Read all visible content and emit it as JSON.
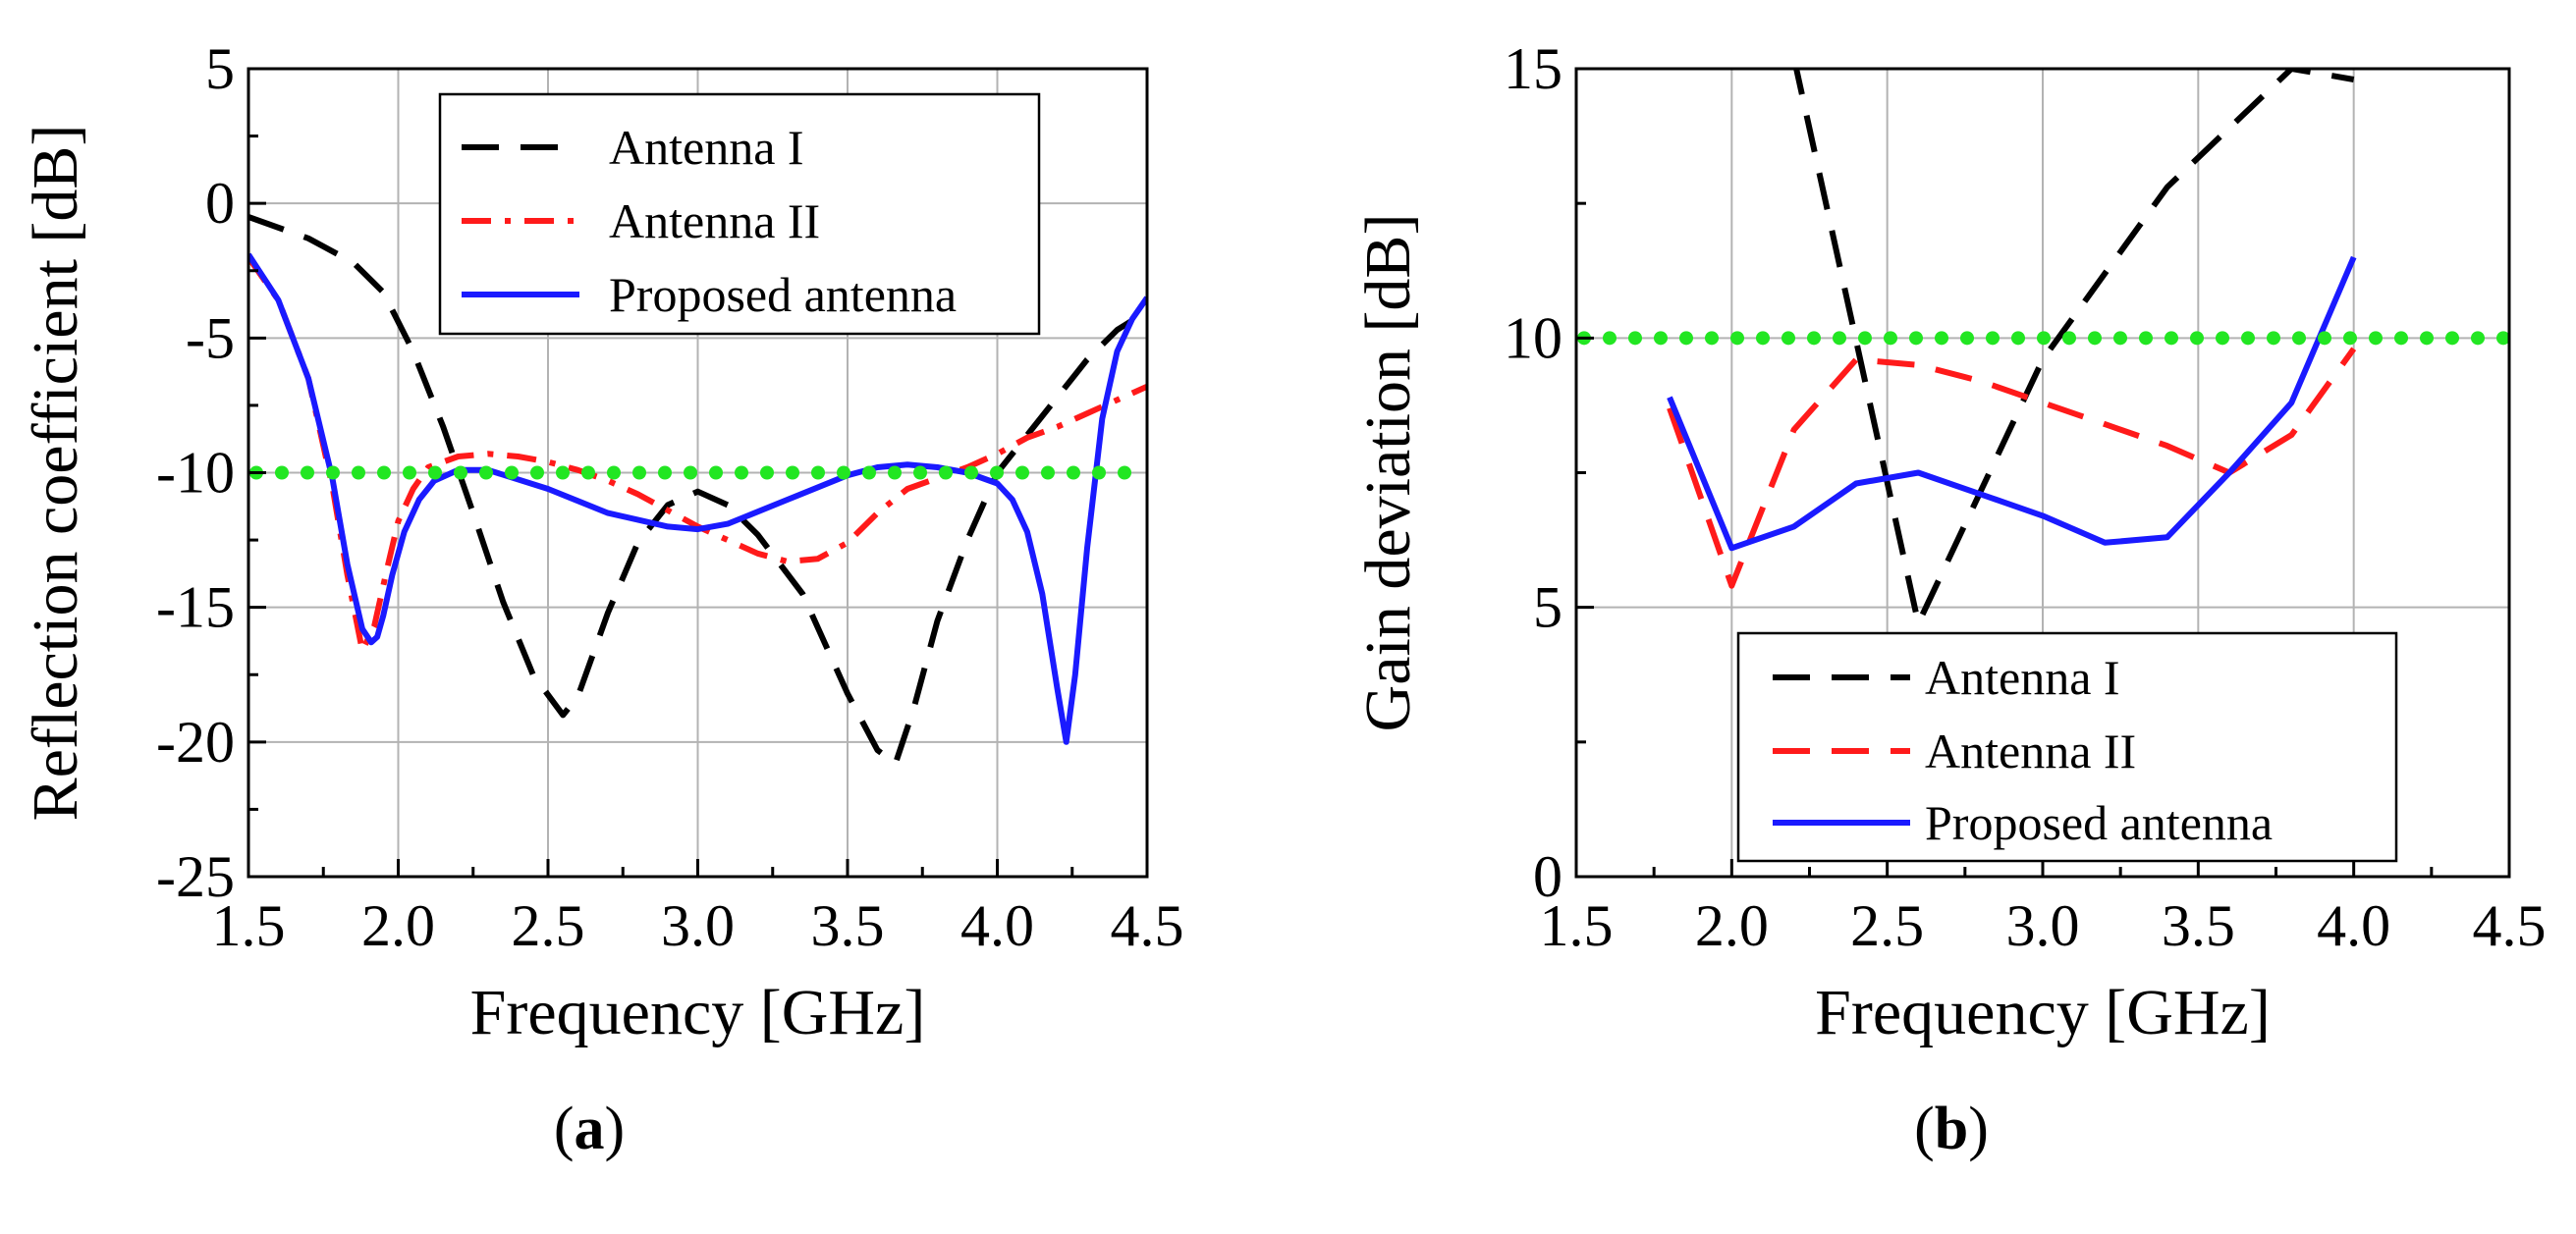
{
  "colors": {
    "antenna_i": "#000000",
    "antenna_ii": "#ff1a1a",
    "proposed": "#1a1aff",
    "threshold": "#22e622",
    "grid": "#b3b3b3"
  },
  "panel_labels": [
    {
      "open": "(",
      "letter": "a",
      "close": ")"
    },
    {
      "open": "(",
      "letter": "b",
      "close": ")"
    }
  ],
  "chart_data": [
    {
      "type": "line",
      "title": "",
      "xlabel": "Frequency [GHz]",
      "ylabel": "Reflection coefficient [dB]",
      "xlim": [
        1.5,
        4.5
      ],
      "ylim": [
        -25,
        5
      ],
      "xticks": [
        1.5,
        2.0,
        2.5,
        3.0,
        3.5,
        4.0,
        4.5
      ],
      "xtick_labels": [
        "1.5",
        "2.0",
        "2.5",
        "3.0",
        "3.5",
        "4.0",
        "4.5"
      ],
      "yticks": [
        -25,
        -20,
        -15,
        -10,
        -5,
        0,
        5
      ],
      "ytick_labels": [
        "-25",
        "-20",
        "-15",
        "-10",
        "-5",
        "0",
        "5"
      ],
      "grid": true,
      "legend_position": "top-right",
      "series": [
        {
          "name": "Antenna I",
          "style": "dash",
          "color": "#000000",
          "x": [
            1.5,
            1.7,
            1.85,
            1.95,
            2.05,
            2.15,
            2.25,
            2.35,
            2.45,
            2.55,
            2.6,
            2.7,
            2.8,
            2.9,
            3.0,
            3.1,
            3.2,
            3.35,
            3.5,
            3.6,
            3.66,
            3.72,
            3.8,
            3.9,
            4.0,
            4.1,
            4.2,
            4.3,
            4.4,
            4.5
          ],
          "y": [
            -0.5,
            -1.3,
            -2.2,
            -3.3,
            -5.5,
            -8.3,
            -11.5,
            -14.8,
            -17.5,
            -19.0,
            -18.3,
            -15.2,
            -12.6,
            -11.2,
            -10.7,
            -11.2,
            -12.3,
            -14.5,
            -18.2,
            -20.3,
            -20.8,
            -18.8,
            -15.5,
            -12.5,
            -10.0,
            -8.6,
            -7.2,
            -5.8,
            -4.7,
            -4.0
          ]
        },
        {
          "name": "Antenna II",
          "style": "dash-dot",
          "color": "#ff1a1a",
          "x": [
            1.5,
            1.6,
            1.7,
            1.78,
            1.83,
            1.88,
            1.92,
            1.96,
            2.0,
            2.05,
            2.1,
            2.2,
            2.3,
            2.4,
            2.5,
            2.6,
            2.7,
            2.8,
            2.9,
            3.0,
            3.1,
            3.2,
            3.3,
            3.4,
            3.5,
            3.6,
            3.7,
            3.8,
            3.9,
            4.0,
            4.1,
            4.2,
            4.3,
            4.4,
            4.5
          ],
          "y": [
            -2.0,
            -3.6,
            -6.5,
            -10.5,
            -13.8,
            -16.6,
            -15.7,
            -13.7,
            -11.8,
            -10.6,
            -9.8,
            -9.4,
            -9.3,
            -9.4,
            -9.6,
            -9.9,
            -10.3,
            -10.8,
            -11.4,
            -12.0,
            -12.5,
            -13.0,
            -13.3,
            -13.2,
            -12.6,
            -11.5,
            -10.6,
            -10.2,
            -9.8,
            -9.3,
            -8.7,
            -8.3,
            -7.8,
            -7.3,
            -6.8
          ]
        },
        {
          "name": "Proposed antenna",
          "style": "solid",
          "color": "#1a1aff",
          "x": [
            1.5,
            1.6,
            1.7,
            1.78,
            1.83,
            1.88,
            1.91,
            1.93,
            1.95,
            1.98,
            2.02,
            2.07,
            2.12,
            2.2,
            2.3,
            2.5,
            2.7,
            2.9,
            3.0,
            3.1,
            3.3,
            3.5,
            3.6,
            3.7,
            3.8,
            3.9,
            4.0,
            4.05,
            4.1,
            4.15,
            4.2,
            4.23,
            4.26,
            4.3,
            4.35,
            4.4,
            4.45,
            4.5
          ],
          "y": [
            -1.9,
            -3.6,
            -6.5,
            -10.2,
            -13.4,
            -15.8,
            -16.3,
            -16.1,
            -15.3,
            -13.8,
            -12.2,
            -11.0,
            -10.3,
            -9.9,
            -9.9,
            -10.6,
            -11.5,
            -12.0,
            -12.1,
            -11.9,
            -11.0,
            -10.1,
            -9.8,
            -9.7,
            -9.8,
            -10.0,
            -10.4,
            -11.0,
            -12.2,
            -14.5,
            -18.0,
            -20.0,
            -17.5,
            -12.8,
            -8.0,
            -5.5,
            -4.3,
            -3.5
          ]
        },
        {
          "name": "threshold",
          "style": "dotted",
          "color": "#22e622",
          "x": [
            1.5,
            4.5
          ],
          "y": [
            -10,
            -10
          ]
        }
      ],
      "legend": [
        "Antenna I",
        "Antenna II",
        "Proposed antenna"
      ]
    },
    {
      "type": "line",
      "title": "",
      "xlabel": "Frequency [GHz]",
      "ylabel": "Gain deviation [dB]",
      "xlim": [
        1.5,
        4.5
      ],
      "ylim": [
        0,
        15
      ],
      "xticks": [
        1.5,
        2.0,
        2.5,
        3.0,
        3.5,
        4.0,
        4.5
      ],
      "xtick_labels": [
        "1.5",
        "2.0",
        "2.5",
        "3.0",
        "3.5",
        "4.0",
        "4.5"
      ],
      "yticks": [
        0,
        5,
        10,
        15
      ],
      "ytick_labels": [
        "0",
        "5",
        "10",
        "15"
      ],
      "grid": true,
      "legend_position": "bottom-center",
      "series": [
        {
          "name": "Antenna I",
          "style": "dash",
          "color": "#000000",
          "x": [
            2.2,
            2.6,
            3.0,
            3.4,
            3.8,
            4.0
          ],
          "y": [
            15.2,
            4.7,
            9.6,
            12.8,
            15.0,
            14.8
          ]
        },
        {
          "name": "Antenna II",
          "style": "dash",
          "color": "#ff1a1a",
          "x": [
            1.8,
            2.0,
            2.2,
            2.4,
            2.6,
            2.8,
            3.0,
            3.2,
            3.4,
            3.6,
            3.8,
            4.0
          ],
          "y": [
            8.7,
            5.4,
            8.3,
            9.6,
            9.5,
            9.2,
            8.8,
            8.4,
            8.0,
            7.5,
            8.2,
            9.8
          ]
        },
        {
          "name": "Proposed antenna",
          "style": "solid",
          "color": "#1a1aff",
          "x": [
            1.8,
            2.0,
            2.2,
            2.4,
            2.6,
            2.8,
            3.0,
            3.2,
            3.4,
            3.6,
            3.8,
            4.0
          ],
          "y": [
            8.9,
            6.1,
            6.5,
            7.3,
            7.5,
            7.1,
            6.7,
            6.2,
            6.3,
            7.5,
            8.8,
            11.5
          ]
        },
        {
          "name": "threshold",
          "style": "dotted",
          "color": "#22e622",
          "x": [
            1.5,
            4.5
          ],
          "y": [
            10,
            10
          ]
        }
      ],
      "legend": [
        "Antenna I",
        "Antenna II",
        "Proposed antenna"
      ]
    }
  ]
}
